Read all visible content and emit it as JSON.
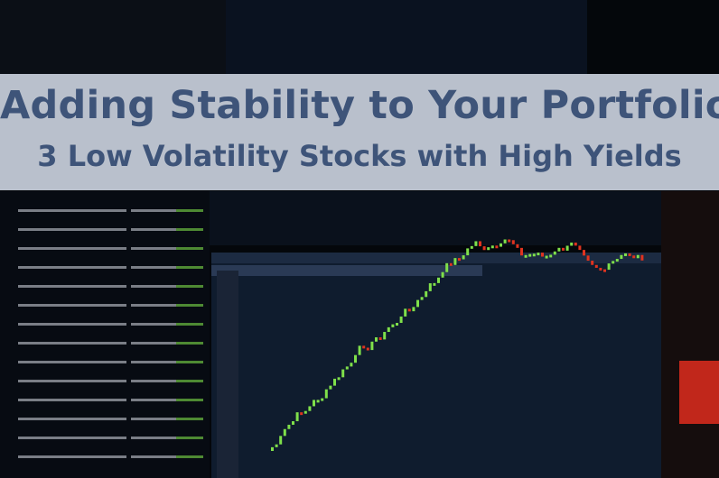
{
  "banner": {
    "title": "Adding Stability to Your Portfolio",
    "subtitle": "3 Low Volatility Stocks with High Yields",
    "background_color": "#b9c0cc",
    "text_color": "#3e5479"
  },
  "photo": {
    "subject": "trading-terminal-screens",
    "colors": {
      "up": "#7fe04a",
      "down": "#e0331f",
      "panel": "#0d1726"
    }
  }
}
